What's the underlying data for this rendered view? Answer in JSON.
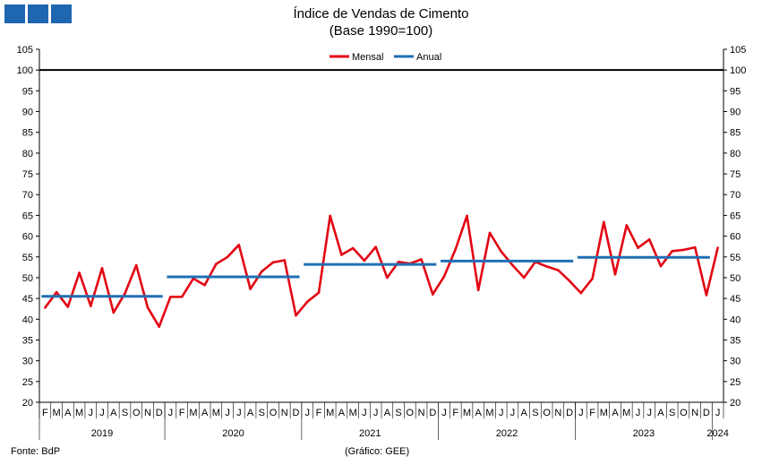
{
  "header": {
    "logo_color": "#1f66b0",
    "title": "Índice de Vendas de Cimento",
    "subtitle": "(Base 1990=100)"
  },
  "footer": {
    "source": "Fonte: BdP",
    "credit": "(Gráfico: GEE)"
  },
  "chart_data": {
    "type": "line",
    "title": "Índice de Vendas de Cimento",
    "subtitle": "(Base 1990=100)",
    "ylim": [
      20,
      105
    ],
    "yticks": [
      20,
      25,
      30,
      35,
      40,
      45,
      50,
      55,
      60,
      65,
      70,
      75,
      80,
      85,
      90,
      95,
      100,
      105
    ],
    "y_axis_both_sides": true,
    "reference_line": {
      "value": 100,
      "color": "#000000"
    },
    "month_labels": [
      "F",
      "M",
      "A",
      "M",
      "J",
      "J",
      "A",
      "S",
      "O",
      "N",
      "D",
      "J",
      "F",
      "M",
      "A",
      "M",
      "J",
      "J",
      "A",
      "S",
      "O",
      "N",
      "D",
      "J",
      "F",
      "M",
      "A",
      "M",
      "J",
      "J",
      "A",
      "S",
      "O",
      "N",
      "D",
      "J",
      "F",
      "M",
      "A",
      "M",
      "J",
      "J",
      "A",
      "S",
      "O",
      "N",
      "D",
      "J",
      "F",
      "M",
      "A",
      "M",
      "J",
      "J",
      "A",
      "S",
      "O",
      "N",
      "D",
      "J"
    ],
    "year_labels": [
      {
        "label": "2019",
        "start": 0,
        "end": 10
      },
      {
        "label": "2020",
        "start": 11,
        "end": 22
      },
      {
        "label": "2021",
        "start": 23,
        "end": 34
      },
      {
        "label": "2022",
        "start": 35,
        "end": 46
      },
      {
        "label": "2023",
        "start": 47,
        "end": 58
      },
      {
        "label": "2024",
        "start": 59,
        "end": 59
      }
    ],
    "legend": {
      "position": "top-center"
    },
    "series": [
      {
        "name": "Mensal",
        "color": "#e30613",
        "values": [
          42.8,
          46.5,
          43.0,
          51.2,
          43.2,
          52.3,
          41.6,
          46.2,
          53.0,
          42.8,
          38.2,
          45.4,
          45.4,
          49.8,
          48.2,
          53.3,
          55.0,
          57.9,
          47.3,
          51.5,
          53.7,
          54.2,
          40.9,
          44.2,
          46.4,
          64.9,
          55.5,
          57.1,
          54.1,
          57.4,
          50.0,
          53.8,
          53.4,
          54.4,
          46.0,
          50.3,
          56.9,
          64.9,
          47.0,
          60.8,
          56.3,
          53.0,
          50.0,
          53.8,
          52.7,
          51.8,
          49.2,
          46.3,
          49.8,
          63.4,
          50.8,
          62.6,
          57.2,
          59.2,
          52.8,
          56.4,
          56.7,
          57.3,
          45.8,
          57.2
        ]
      },
      {
        "name": "Anual",
        "color": "#1f6fb4",
        "segments": [
          {
            "start": 0,
            "end": 10,
            "value": 45.5
          },
          {
            "start": 11,
            "end": 22,
            "value": 50.2
          },
          {
            "start": 23,
            "end": 34,
            "value": 53.2
          },
          {
            "start": 35,
            "end": 46,
            "value": 54.0
          },
          {
            "start": 47,
            "end": 58,
            "value": 54.9
          }
        ]
      }
    ]
  }
}
